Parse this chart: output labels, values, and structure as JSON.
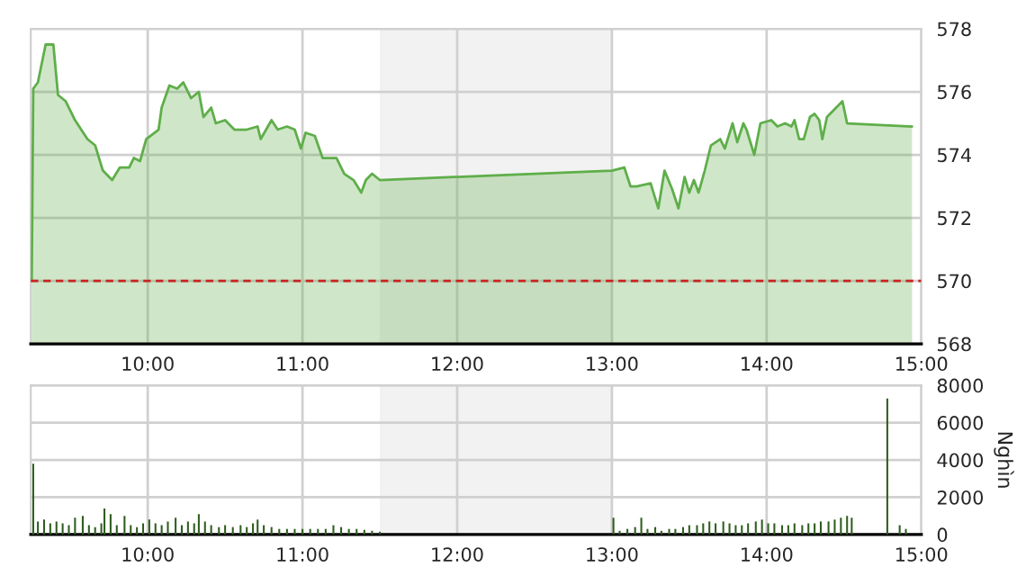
{
  "chart_data": [
    {
      "type": "area",
      "xlim": [
        9.244,
        15
      ],
      "xticks": [
        {
          "value": 10,
          "label": "10:00"
        },
        {
          "value": 11,
          "label": "11:00"
        },
        {
          "value": 12,
          "label": "12:00"
        },
        {
          "value": 13,
          "label": "13:00"
        },
        {
          "value": 14,
          "label": "14:00"
        },
        {
          "value": 15,
          "label": "15:00"
        }
      ],
      "ylim": [
        568,
        578
      ],
      "yticks": [
        568,
        570,
        572,
        574,
        576,
        578
      ],
      "grid": true,
      "ref_lines": [
        {
          "axis": "y",
          "value": 570,
          "color": "#cc2222",
          "line_style": "dashed"
        }
      ],
      "bands": [
        {
          "axis": "x",
          "from": 11.5,
          "to": 13.0,
          "color": "#f2f2f2"
        }
      ],
      "series": [
        {
          "color": "#5fae4a",
          "x": [
            9.25,
            9.26,
            9.29,
            9.34,
            9.39,
            9.42,
            9.47,
            9.53,
            9.61,
            9.66,
            9.71,
            9.77,
            9.82,
            9.88,
            9.91,
            9.95,
            9.99,
            10.07,
            10.09,
            10.14,
            10.19,
            10.23,
            10.28,
            10.33,
            10.36,
            10.41,
            10.44,
            10.5,
            10.56,
            10.64,
            10.71,
            10.73,
            10.8,
            10.84,
            10.9,
            10.95,
            10.99,
            11.02,
            11.08,
            11.13,
            11.22,
            11.27,
            11.33,
            11.38,
            11.41,
            11.45,
            11.5,
            13.0,
            13.08,
            13.12,
            13.16,
            13.25,
            13.3,
            13.34,
            13.39,
            13.43,
            13.47,
            13.5,
            13.53,
            13.56,
            13.6,
            13.64,
            13.7,
            13.73,
            13.78,
            13.81,
            13.85,
            13.87,
            13.92,
            13.96,
            14.03,
            14.07,
            14.12,
            14.16,
            14.18,
            14.21,
            14.24,
            14.28,
            14.31,
            14.34,
            14.36,
            14.39,
            14.43,
            14.49,
            14.52,
            14.94
          ],
          "values": [
            570.0,
            576.1,
            576.3,
            577.5,
            577.5,
            575.9,
            575.7,
            575.1,
            574.5,
            574.3,
            573.5,
            573.2,
            573.6,
            573.6,
            573.9,
            573.8,
            574.5,
            574.8,
            575.5,
            576.2,
            576.1,
            576.3,
            575.8,
            576.0,
            575.2,
            575.5,
            575.0,
            575.1,
            574.8,
            574.8,
            574.9,
            574.5,
            575.1,
            574.8,
            574.9,
            574.8,
            574.2,
            574.7,
            574.6,
            573.9,
            573.9,
            573.4,
            573.2,
            572.8,
            573.2,
            573.4,
            573.2,
            573.5,
            573.6,
            573.0,
            573.0,
            573.1,
            572.3,
            573.5,
            572.9,
            572.3,
            573.3,
            572.8,
            573.2,
            572.8,
            573.5,
            574.3,
            574.5,
            574.2,
            575.0,
            574.4,
            575.0,
            574.8,
            574.0,
            575.0,
            575.1,
            574.9,
            575.0,
            574.9,
            575.1,
            574.5,
            574.5,
            575.2,
            575.3,
            575.1,
            574.5,
            575.2,
            575.4,
            575.7,
            575.0,
            574.9
          ]
        }
      ]
    },
    {
      "type": "bar",
      "xlim": [
        9.244,
        15
      ],
      "xticks": [
        {
          "value": 10,
          "label": "10:00"
        },
        {
          "value": 11,
          "label": "11:00"
        },
        {
          "value": 12,
          "label": "12:00"
        },
        {
          "value": 13,
          "label": "13:00"
        },
        {
          "value": 14,
          "label": "14:00"
        },
        {
          "value": 15,
          "label": "15:00"
        }
      ],
      "ylim": [
        0,
        8000
      ],
      "yticks": [
        0,
        2000,
        4000,
        6000,
        8000
      ],
      "ylabel": "Nghìn",
      "grid": true,
      "bands": [
        {
          "axis": "x",
          "from": 11.5,
          "to": 13.0,
          "color": "#f2f2f2"
        }
      ],
      "series": [
        {
          "color": "#2e5e1e",
          "x": [
            9.26,
            9.29,
            9.33,
            9.37,
            9.41,
            9.45,
            9.49,
            9.53,
            9.58,
            9.62,
            9.66,
            9.7,
            9.72,
            9.76,
            9.8,
            9.85,
            9.89,
            9.93,
            9.97,
            10.01,
            10.05,
            10.09,
            10.13,
            10.18,
            10.22,
            10.26,
            10.3,
            10.33,
            10.37,
            10.41,
            10.46,
            10.5,
            10.55,
            10.6,
            10.64,
            10.68,
            10.71,
            10.75,
            10.8,
            10.85,
            10.9,
            10.95,
            11.0,
            11.05,
            11.1,
            11.15,
            11.2,
            11.25,
            11.3,
            11.35,
            11.4,
            11.45,
            11.5,
            13.01,
            13.05,
            13.1,
            13.15,
            13.19,
            13.23,
            13.28,
            13.32,
            13.37,
            13.41,
            13.46,
            13.5,
            13.55,
            13.59,
            13.63,
            13.67,
            13.72,
            13.76,
            13.8,
            13.84,
            13.88,
            13.93,
            13.97,
            14.01,
            14.05,
            14.1,
            14.14,
            14.18,
            14.23,
            14.27,
            14.31,
            14.35,
            14.4,
            14.44,
            14.48,
            14.52,
            14.55,
            14.78,
            14.86,
            14.9
          ],
          "values": [
            3800,
            700,
            800,
            600,
            700,
            600,
            500,
            900,
            1000,
            500,
            400,
            600,
            1400,
            1100,
            500,
            1000,
            500,
            400,
            600,
            800,
            600,
            500,
            700,
            900,
            500,
            700,
            600,
            1100,
            700,
            500,
            400,
            500,
            400,
            500,
            400,
            600,
            800,
            500,
            400,
            300,
            300,
            300,
            300,
            300,
            300,
            300,
            500,
            400,
            300,
            300,
            250,
            200,
            150,
            900,
            200,
            300,
            400,
            900,
            300,
            400,
            200,
            300,
            300,
            400,
            500,
            500,
            600,
            700,
            600,
            700,
            600,
            500,
            500,
            600,
            700,
            800,
            600,
            600,
            500,
            500,
            600,
            500,
            600,
            600,
            700,
            700,
            800,
            900,
            1000,
            900,
            7300,
            500,
            300
          ]
        }
      ]
    }
  ]
}
